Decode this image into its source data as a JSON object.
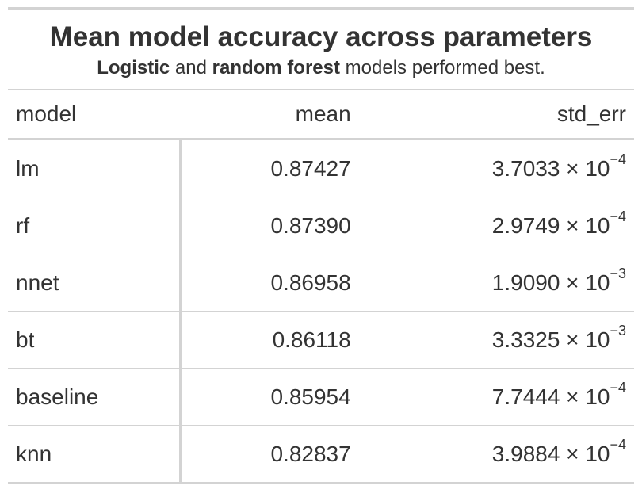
{
  "header": {
    "title": "Mean model accuracy across parameters",
    "subtitle": [
      {
        "text": "Logistic",
        "bold": true
      },
      {
        "text": " and ",
        "bold": false
      },
      {
        "text": "random forest",
        "bold": true
      },
      {
        "text": " models performed best.",
        "bold": false
      }
    ]
  },
  "table": {
    "columns": [
      "model",
      "mean",
      "std_err"
    ],
    "rows": [
      [
        "lm",
        "0.87427",
        {
          "coef": "3.7033 × 10",
          "exp": "−4"
        }
      ],
      [
        "rf",
        "0.87390",
        {
          "coef": "2.9749 × 10",
          "exp": "−4"
        }
      ],
      [
        "nnet",
        "0.86958",
        {
          "coef": "1.9090 × 10",
          "exp": "−3"
        }
      ],
      [
        "bt",
        "0.86118",
        {
          "coef": "3.3325 × 10",
          "exp": "−3"
        }
      ],
      [
        "baseline",
        "0.85954",
        {
          "coef": "7.7444 × 10",
          "exp": "−4"
        }
      ],
      [
        "knn",
        "0.82837",
        {
          "coef": "3.9884 × 10",
          "exp": "−4"
        }
      ]
    ]
  }
}
